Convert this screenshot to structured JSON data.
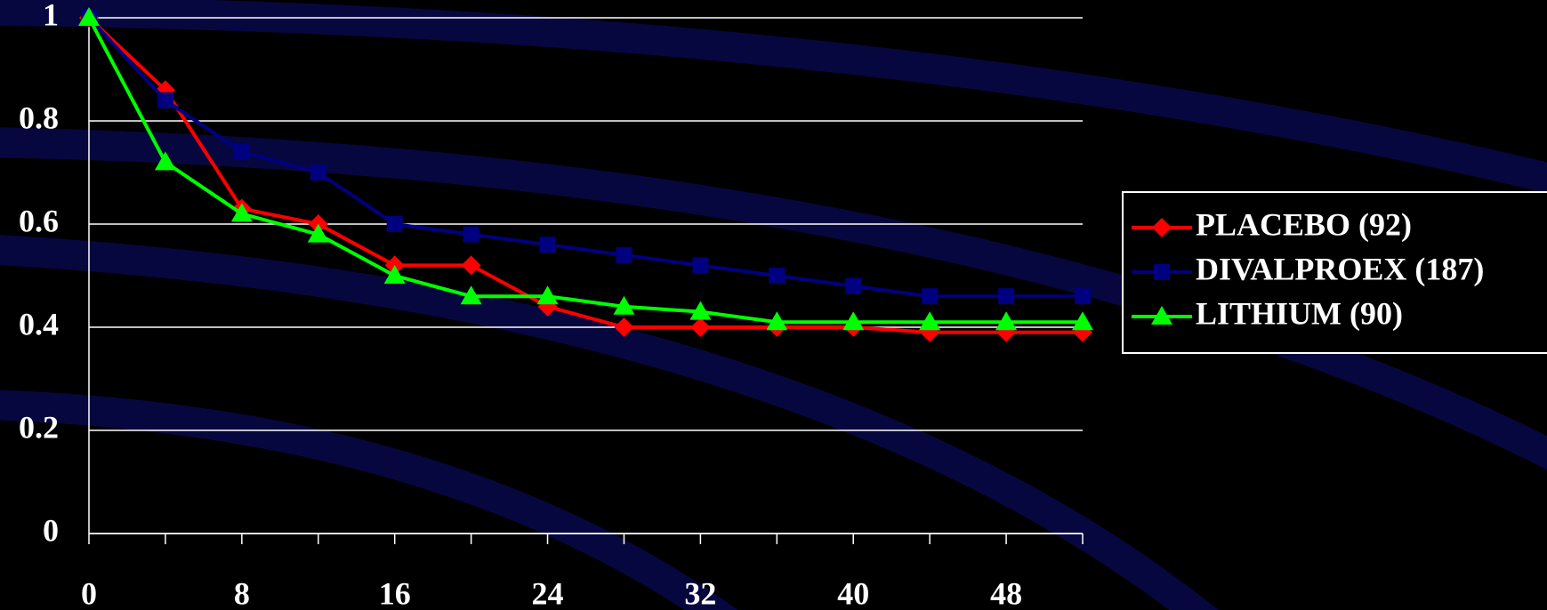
{
  "chart_data": {
    "type": "line",
    "x": [
      0,
      4,
      8,
      12,
      16,
      20,
      24,
      28,
      32,
      36,
      40,
      44,
      48,
      52
    ],
    "series": [
      {
        "name": "PLACEBO (92)",
        "color": "#ff0000",
        "marker": "diamond",
        "values": [
          1,
          0.86,
          0.63,
          0.6,
          0.52,
          0.52,
          0.44,
          0.4,
          0.4,
          0.4,
          0.4,
          0.39,
          0.39,
          0.39
        ]
      },
      {
        "name": "DIVALPROEX (187)",
        "color": "#000080",
        "marker": "square",
        "values": [
          1,
          0.84,
          0.74,
          0.7,
          0.6,
          0.58,
          0.56,
          0.54,
          0.52,
          0.5,
          0.48,
          0.46,
          0.46,
          0.46
        ]
      },
      {
        "name": "LITHIUM (90)",
        "color": "#00ff00",
        "marker": "triangle",
        "values": [
          1,
          0.72,
          0.62,
          0.58,
          0.5,
          0.46,
          0.46,
          0.44,
          0.43,
          0.41,
          0.41,
          0.41,
          0.41,
          0.41
        ]
      }
    ],
    "xlim": [
      0,
      52
    ],
    "xticks": [
      0,
      8,
      16,
      24,
      32,
      40,
      48
    ],
    "ylim": [
      0,
      1
    ],
    "yticks": [
      0,
      0.2,
      0.4,
      0.6,
      0.8,
      1
    ],
    "grid": true,
    "legend": "right"
  }
}
